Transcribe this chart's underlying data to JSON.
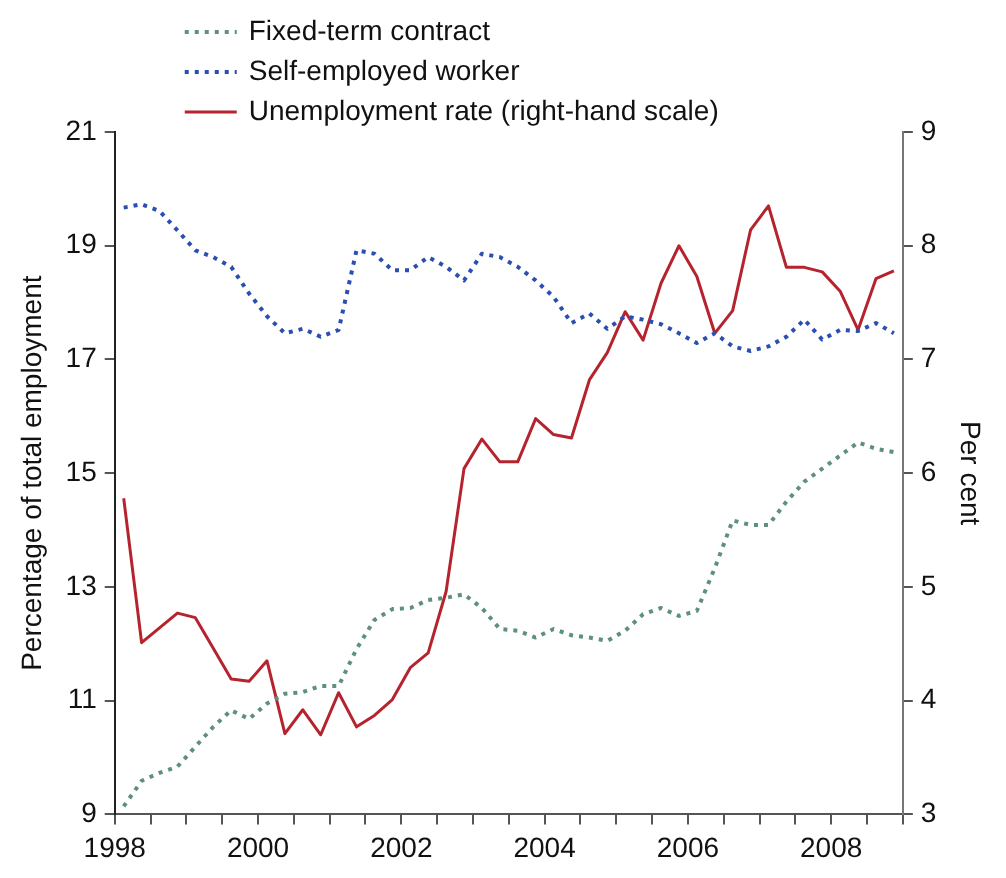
{
  "chart_data": {
    "type": "line",
    "ylabel": "Percentage of total employment",
    "y2label": "Per cent",
    "x": [
      1998.125,
      1998.375,
      1998.625,
      1998.875,
      1999.125,
      1999.375,
      1999.625,
      1999.875,
      2000.125,
      2000.375,
      2000.625,
      2000.875,
      2001.125,
      2001.375,
      2001.625,
      2001.875,
      2002.125,
      2002.375,
      2002.625,
      2002.875,
      2003.125,
      2003.375,
      2003.625,
      2003.875,
      2004.125,
      2004.375,
      2004.625,
      2004.875,
      2005.125,
      2005.375,
      2005.625,
      2005.875,
      2006.125,
      2006.375,
      2006.625,
      2006.875,
      2007.125,
      2007.375,
      2007.625,
      2007.875,
      2008.125,
      2008.375,
      2008.625,
      2008.875
    ],
    "series": [
      {
        "name": "Fixed-term contract",
        "color": "#5f8f7f",
        "line_style": "dotted",
        "values": [
          9.14,
          9.59,
          9.73,
          9.84,
          10.19,
          10.54,
          10.83,
          10.68,
          10.95,
          11.12,
          11.15,
          11.26,
          11.26,
          11.91,
          12.42,
          12.61,
          12.63,
          12.77,
          12.81,
          12.87,
          12.63,
          12.26,
          12.23,
          12.11,
          12.26,
          12.15,
          12.11,
          12.05,
          12.23,
          12.52,
          12.63,
          12.49,
          12.58,
          13.33,
          14.17,
          14.09,
          14.09,
          14.5,
          14.85,
          15.08,
          15.31,
          15.54,
          15.43,
          15.37
        ]
      },
      {
        "name": "Self-employed worker",
        "color": "#2a4fb0",
        "line_style": "dotted",
        "values": [
          19.67,
          19.73,
          19.61,
          19.27,
          18.92,
          18.8,
          18.63,
          18.16,
          17.76,
          17.46,
          17.54,
          17.4,
          17.52,
          18.92,
          18.86,
          18.57,
          18.57,
          18.8,
          18.63,
          18.39,
          18.86,
          18.8,
          18.63,
          18.39,
          18.1,
          17.64,
          17.81,
          17.54,
          17.76,
          17.7,
          17.62,
          17.46,
          17.29,
          17.46,
          17.23,
          17.15,
          17.23,
          17.4,
          17.7,
          17.35,
          17.52,
          17.5,
          17.64,
          17.46
        ]
      },
      {
        "name": "Unemployment rate (right-hand scale)",
        "color": "#b5242e",
        "line_style": "solid",
        "axis": "y2",
        "values": [
          5.78,
          4.51,
          4.64,
          4.77,
          4.73,
          4.46,
          4.19,
          4.17,
          4.35,
          3.71,
          3.92,
          3.7,
          4.07,
          3.77,
          3.87,
          4.01,
          4.29,
          4.42,
          4.96,
          6.04,
          6.3,
          6.1,
          6.1,
          6.48,
          6.34,
          6.31,
          6.82,
          7.06,
          7.42,
          7.17,
          7.67,
          8.0,
          7.73,
          7.23,
          7.43,
          8.14,
          8.35,
          7.81,
          7.81,
          7.77,
          7.6,
          7.26,
          7.71,
          7.78
        ]
      }
    ],
    "xlim": [
      1998,
      2009
    ],
    "xticks": [
      1998,
      {
        "value": 1998.5,
        "label": null
      },
      2000,
      {
        "value": 1999,
        "label": null
      },
      {
        "value": 1999.5,
        "label": null
      },
      {
        "value": 2000.5,
        "label": null
      },
      {
        "value": 2001,
        "label": null
      },
      {
        "value": 2001.5,
        "label": null
      },
      2002,
      {
        "value": 2002.5,
        "label": null
      },
      {
        "value": 2003,
        "label": null
      },
      {
        "value": 2003.5,
        "label": null
      },
      2004,
      {
        "value": 2004.5,
        "label": null
      },
      {
        "value": 2005,
        "label": null
      },
      {
        "value": 2005.5,
        "label": null
      },
      2006,
      {
        "value": 2006.5,
        "label": null
      },
      {
        "value": 2007,
        "label": null
      },
      {
        "value": 2007.5,
        "label": null
      },
      2008,
      {
        "value": 2008.5,
        "label": null
      },
      {
        "value": 2009,
        "label": null
      }
    ],
    "ylim": [
      9,
      21
    ],
    "yticks": [
      9,
      11,
      13,
      15,
      17,
      19,
      21
    ],
    "y2lim": [
      3,
      9
    ],
    "y2ticks": [
      3,
      4,
      5,
      6,
      7,
      8,
      9
    ],
    "grid": false,
    "legend": "top left",
    "marker": "none"
  }
}
